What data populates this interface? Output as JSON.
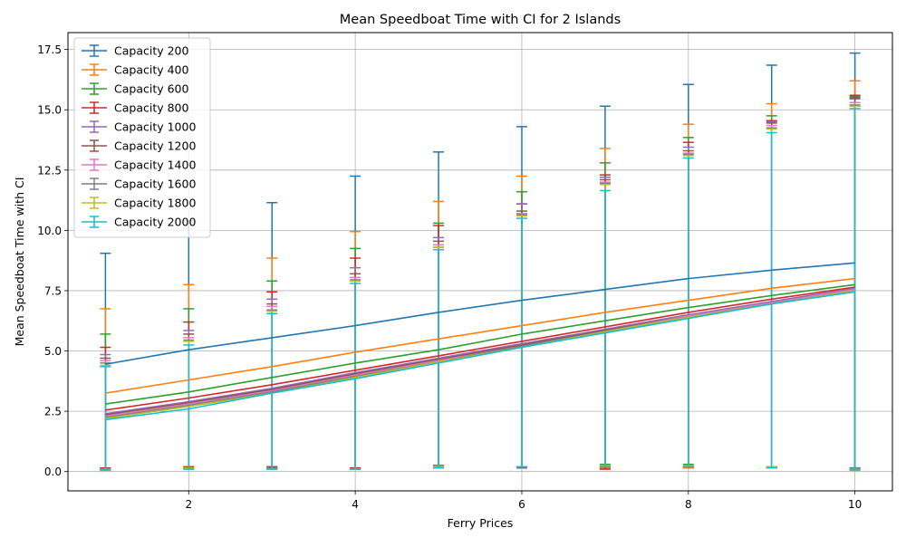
{
  "chart_data": {
    "type": "line",
    "title": "Mean Speedboat Time with CI for 2 Islands",
    "xlabel": "Ferry Prices",
    "ylabel": "Mean Speedboat Time with CI",
    "x": [
      1,
      2,
      3,
      4,
      5,
      6,
      7,
      8,
      9,
      10
    ],
    "xlim": [
      0.55,
      10.45
    ],
    "ylim": [
      -0.8,
      18.2
    ],
    "xticks": [
      2,
      4,
      6,
      8,
      10
    ],
    "yticks": [
      0.0,
      2.5,
      5.0,
      7.5,
      10.0,
      12.5,
      15.0,
      17.5
    ],
    "ytick_labels": [
      "0.0",
      "2.5",
      "5.0",
      "7.5",
      "10.0",
      "12.5",
      "15.0",
      "17.5"
    ],
    "grid": true,
    "legend_position": "top-left",
    "error_bars": true,
    "series": [
      {
        "name": "Capacity 200",
        "color": "#1f77b4",
        "values": [
          4.45,
          5.05,
          5.55,
          6.05,
          6.6,
          7.1,
          7.55,
          8.0,
          8.35,
          8.65
        ],
        "upper": [
          9.05,
          10.4,
          11.15,
          12.25,
          13.25,
          14.3,
          15.15,
          16.05,
          16.85,
          17.35
        ],
        "lower": [
          0.15,
          0.15,
          0.15,
          0.15,
          0.15,
          0.15,
          0.15,
          0.15,
          0.15,
          0.1
        ]
      },
      {
        "name": "Capacity 400",
        "color": "#ff7f0e",
        "values": [
          3.25,
          3.8,
          4.35,
          4.95,
          5.5,
          6.05,
          6.6,
          7.1,
          7.6,
          8.0
        ],
        "upper": [
          6.75,
          7.75,
          8.85,
          9.95,
          11.2,
          12.25,
          13.4,
          14.4,
          15.25,
          16.2
        ],
        "lower": [
          0.05,
          0.1,
          0.1,
          0.1,
          0.2,
          0.2,
          0.15,
          0.15,
          0.15,
          0.05
        ]
      },
      {
        "name": "Capacity 600",
        "color": "#2ca02c",
        "values": [
          2.8,
          3.3,
          3.9,
          4.5,
          5.05,
          5.7,
          6.25,
          6.8,
          7.3,
          7.75
        ],
        "upper": [
          5.7,
          6.75,
          7.9,
          9.25,
          10.3,
          11.6,
          12.8,
          13.85,
          14.75,
          15.55
        ],
        "lower": [
          0.1,
          0.15,
          0.15,
          0.1,
          0.2,
          0.2,
          0.3,
          0.3,
          0.2,
          0.1
        ]
      },
      {
        "name": "Capacity 800",
        "color": "#d62728",
        "values": [
          2.55,
          3.05,
          3.6,
          4.2,
          4.8,
          5.4,
          6.0,
          6.6,
          7.15,
          7.65
        ],
        "upper": [
          5.15,
          6.2,
          7.45,
          8.85,
          10.2,
          11.1,
          12.3,
          13.65,
          14.55,
          15.6
        ],
        "lower": [
          0.15,
          0.2,
          0.2,
          0.15,
          0.25,
          0.2,
          0.1,
          0.2,
          0.2,
          0.15
        ]
      },
      {
        "name": "Capacity 1000",
        "color": "#9467bd",
        "values": [
          2.4,
          2.9,
          3.45,
          4.1,
          4.7,
          5.3,
          5.9,
          6.5,
          7.05,
          7.6
        ],
        "upper": [
          4.85,
          5.85,
          7.15,
          8.45,
          9.7,
          11.1,
          12.2,
          13.45,
          14.5,
          15.45
        ],
        "lower": [
          0.1,
          0.15,
          0.15,
          0.1,
          0.25,
          0.2,
          0.2,
          0.2,
          0.2,
          0.15
        ]
      },
      {
        "name": "Capacity 1200",
        "color": "#8c564b",
        "values": [
          2.35,
          2.85,
          3.4,
          4.05,
          4.65,
          5.25,
          5.85,
          6.45,
          7.0,
          7.55
        ],
        "upper": [
          4.7,
          5.7,
          6.95,
          8.2,
          9.55,
          10.8,
          12.1,
          13.3,
          14.45,
          15.5
        ],
        "lower": [
          0.1,
          0.15,
          0.15,
          0.1,
          0.25,
          0.2,
          0.2,
          0.2,
          0.2,
          0.15
        ]
      },
      {
        "name": "Capacity 1400",
        "color": "#e377c2",
        "values": [
          2.3,
          2.8,
          3.35,
          4.0,
          4.6,
          5.2,
          5.8,
          6.45,
          7.0,
          7.55
        ],
        "upper": [
          4.6,
          5.55,
          6.85,
          8.05,
          9.4,
          10.7,
          12.0,
          13.2,
          14.35,
          15.3
        ],
        "lower": [
          0.1,
          0.15,
          0.15,
          0.1,
          0.25,
          0.2,
          0.2,
          0.2,
          0.2,
          0.15
        ]
      },
      {
        "name": "Capacity 1600",
        "color": "#7f7f7f",
        "values": [
          2.25,
          2.75,
          3.3,
          3.95,
          4.55,
          5.2,
          5.8,
          6.4,
          6.95,
          7.5
        ],
        "upper": [
          4.5,
          5.45,
          6.7,
          7.95,
          9.3,
          10.65,
          11.95,
          13.15,
          14.25,
          15.2
        ],
        "lower": [
          0.1,
          0.15,
          0.15,
          0.1,
          0.25,
          0.2,
          0.2,
          0.2,
          0.2,
          0.15
        ]
      },
      {
        "name": "Capacity 1800",
        "color": "#bcbd22",
        "values": [
          2.2,
          2.7,
          3.25,
          3.9,
          4.55,
          5.15,
          5.8,
          6.4,
          6.95,
          7.5
        ],
        "upper": [
          4.4,
          5.4,
          6.65,
          7.9,
          9.3,
          10.6,
          11.9,
          13.1,
          14.2,
          15.15
        ],
        "lower": [
          0.1,
          0.15,
          0.1,
          0.1,
          0.2,
          0.2,
          0.25,
          0.25,
          0.2,
          0.1
        ]
      },
      {
        "name": "Capacity 2000",
        "color": "#17becf",
        "values": [
          2.15,
          2.6,
          3.25,
          3.85,
          4.5,
          5.15,
          5.75,
          6.35,
          6.95,
          7.45
        ],
        "upper": [
          4.35,
          5.25,
          6.55,
          7.8,
          9.2,
          10.5,
          11.65,
          13.0,
          14.05,
          15.05
        ],
        "lower": [
          0.1,
          0.1,
          0.1,
          0.1,
          0.15,
          0.2,
          0.2,
          0.2,
          0.15,
          0.1
        ]
      }
    ]
  }
}
